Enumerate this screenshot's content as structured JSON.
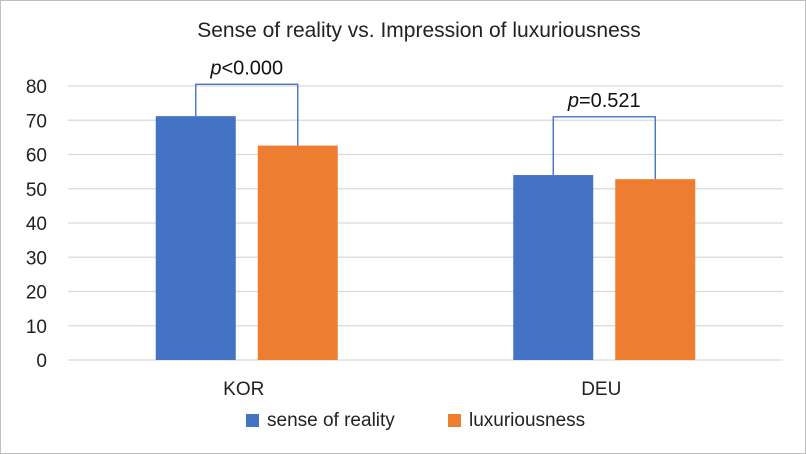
{
  "chart_data": {
    "type": "bar",
    "title": "Sense of reality vs. Impression of luxuriousness",
    "categories": [
      "KOR",
      "DEU"
    ],
    "series": [
      {
        "name": "sense of reality",
        "values": [
          71.2,
          54.0
        ],
        "color": "#4472c4"
      },
      {
        "name": "luxuriousness",
        "values": [
          62.6,
          52.8
        ],
        "color": "#ed7d31"
      }
    ],
    "ylim": [
      0,
      80
    ],
    "yticks": [
      0,
      10,
      20,
      30,
      40,
      50,
      60,
      70,
      80
    ],
    "grid": true,
    "legend": "bottom",
    "annotations": [
      {
        "category": "KOR",
        "italic": "p",
        "rest": "<0.000",
        "bracket_top": 80.5
      },
      {
        "category": "DEU",
        "italic": "p",
        "rest": "=0.521",
        "bracket_top": 71
      }
    ],
    "colors": {
      "grid": "#d9d9d9",
      "bracket": "#4472c4",
      "axis": "#d9d9d9"
    }
  }
}
